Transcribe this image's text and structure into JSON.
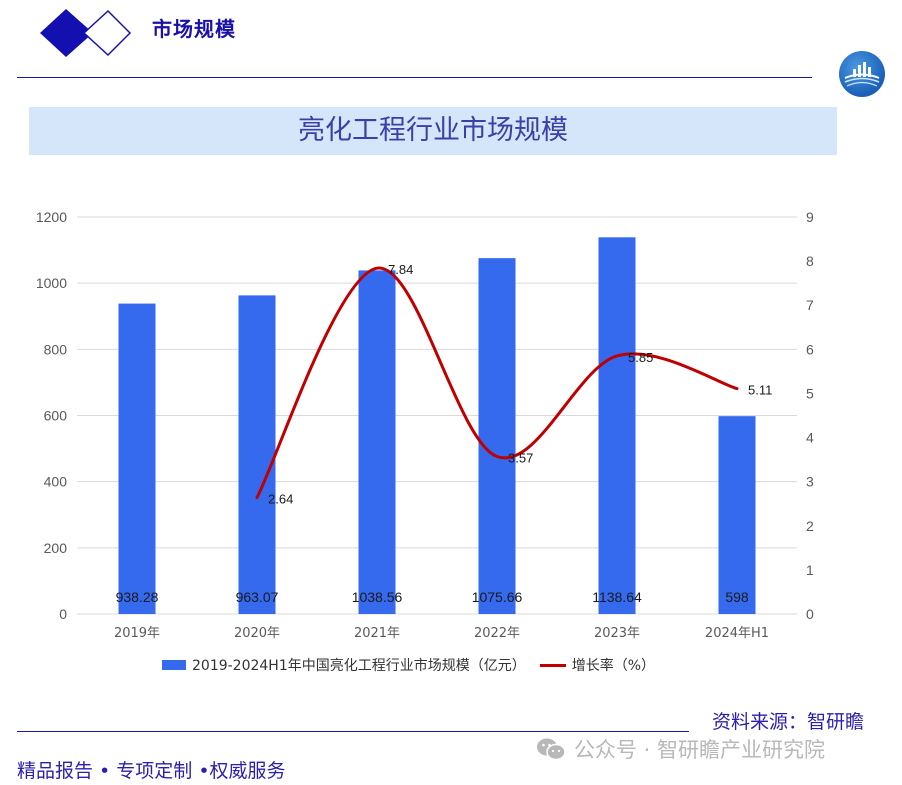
{
  "header": {
    "section_title": "市场规模",
    "logo_icon": "city-skyline-wave-logo"
  },
  "chart_title": "亮化工程行业市场规模",
  "chart_data": {
    "type": "bar+line",
    "title": "亮化工程行业市场规模",
    "categories": [
      "2019年",
      "2020年",
      "2021年",
      "2022年",
      "2023年",
      "2024年H1"
    ],
    "series": [
      {
        "name": "2019-2024H1年中国亮化工程行业市场规模（亿元）",
        "type": "bar",
        "axis": "left",
        "color": "#3569ee",
        "values": [
          938.28,
          963.07,
          1038.56,
          1075.66,
          1138.64,
          598
        ],
        "labels": [
          "938.28",
          "963.07",
          "1038.56",
          "1075.66",
          "1138.64",
          "598"
        ]
      },
      {
        "name": "增长率（%）",
        "type": "line",
        "axis": "right",
        "color": "#c00000",
        "smooth": true,
        "values": [
          null,
          2.64,
          7.84,
          3.57,
          5.85,
          5.11
        ],
        "labels": [
          "",
          "2.64",
          "7.84",
          "3.57",
          "5.85",
          "5.11"
        ]
      }
    ],
    "y_left": {
      "min": 0,
      "max": 1200,
      "ticks": [
        "0",
        "200",
        "400",
        "600",
        "800",
        "1000",
        "1200"
      ]
    },
    "y_right": {
      "min": 0,
      "max": 9,
      "ticks": [
        "0",
        "1",
        "2",
        "3",
        "4",
        "5",
        "6",
        "7",
        "8",
        "9"
      ]
    },
    "grid": true,
    "legend_position": "bottom"
  },
  "legend": {
    "bar_label": "2019-2024H1年中国亮化工程行业市场规模（亿元）",
    "line_label": "增长率（%）"
  },
  "footer": {
    "source": "资料来源：智研瞻",
    "wechat": "公众号 · 智研瞻产业研究院",
    "slogan": "精品报告 • 专项定制 •权威服务"
  }
}
